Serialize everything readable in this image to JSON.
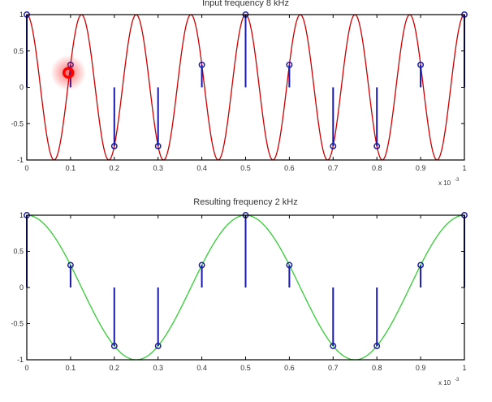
{
  "chart_data": [
    {
      "type": "line",
      "title": "Input frequency 8 kHz",
      "x_multiplier_label": "x 10",
      "x_multiplier_exp": "-3",
      "xlim": [
        0,
        1
      ],
      "ylim": [
        -1,
        1
      ],
      "xticks": [
        "0",
        "0.1",
        "0.2",
        "0.3",
        "0.4",
        "0.5",
        "0.6",
        "0.7",
        "0.8",
        "0.9",
        "1"
      ],
      "yticks": [
        "1",
        "0.5",
        "0",
        "-0.5",
        "-1"
      ],
      "grid": false,
      "curve": {
        "function": "cos(2*pi*f*t)",
        "frequency_khz": 8,
        "color": "#cc0000"
      },
      "stems": {
        "x": [
          0,
          0.1,
          0.2,
          0.3,
          0.4,
          0.5,
          0.6,
          0.7,
          0.8,
          0.9,
          1
        ],
        "y": [
          1,
          0.309,
          -0.809,
          -0.809,
          0.309,
          1,
          0.309,
          -0.809,
          -0.809,
          0.309,
          1
        ],
        "color": "#1a1aaa"
      },
      "cursor_marker": {
        "x": 0.095,
        "y": 0.2,
        "color": "#ff0000"
      }
    },
    {
      "type": "line",
      "title": "Resulting frequency 2 kHz",
      "x_multiplier_label": "x 10",
      "x_multiplier_exp": "-3",
      "xlim": [
        0,
        1
      ],
      "ylim": [
        -1,
        1
      ],
      "xticks": [
        "0",
        "0.1",
        "0.2",
        "0.3",
        "0.4",
        "0.5",
        "0.6",
        "0.7",
        "0.8",
        "0.9",
        "1"
      ],
      "yticks": [
        "1",
        "0.5",
        "0",
        "-0.5",
        "-1"
      ],
      "grid": false,
      "curve": {
        "function": "cos(2*pi*f*t)",
        "frequency_khz": 2,
        "color": "#33cc33"
      },
      "stems": {
        "x": [
          0,
          0.1,
          0.2,
          0.3,
          0.4,
          0.5,
          0.6,
          0.7,
          0.8,
          0.9,
          1
        ],
        "y": [
          1,
          0.309,
          -0.809,
          -0.809,
          0.309,
          1,
          0.309,
          -0.809,
          -0.809,
          0.309,
          1
        ],
        "color": "#1a1aaa"
      }
    }
  ]
}
